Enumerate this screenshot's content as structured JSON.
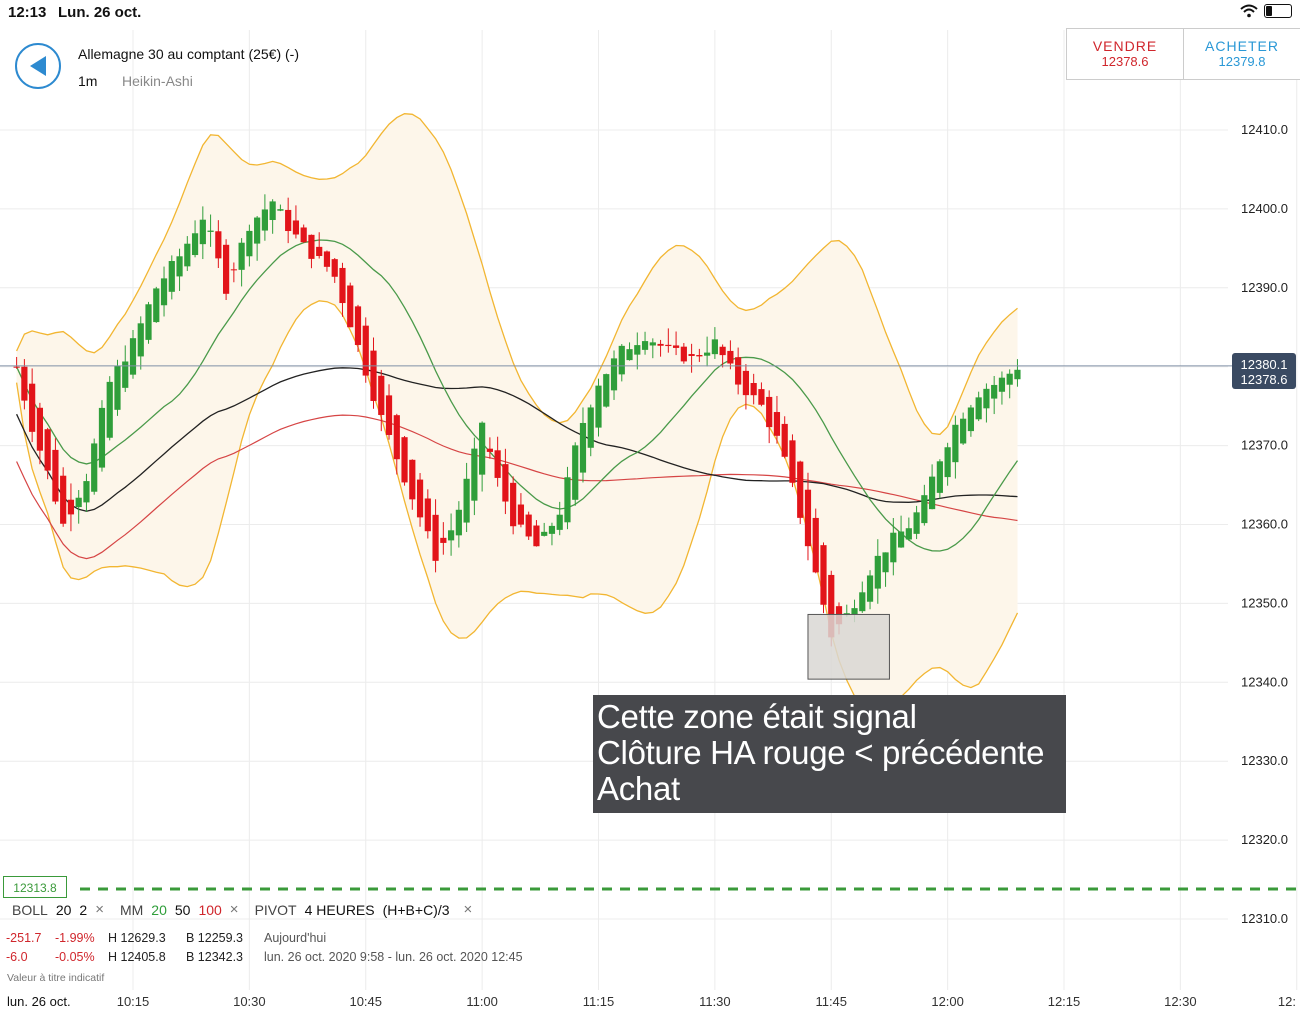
{
  "status_bar": {
    "time": "12:13",
    "date": "Lun. 26 oct."
  },
  "header": {
    "instrument": "Allemagne 30 au comptant (25€) (-)",
    "timeframe": "1m",
    "chart_type": "Heikin-Ashi",
    "sell": {
      "label": "VENDRE",
      "price": "12378.6"
    },
    "buy": {
      "label": "ACHETER",
      "price": "12379.8"
    }
  },
  "colors": {
    "bull": "#2f9e3a",
    "bear": "#e2141a",
    "band": "#f2b632",
    "band_fill": "#fdf6ea",
    "mm20": "#4a9a4a",
    "mm50": "#222222",
    "mm100": "#d64545",
    "accent": "#2d8ad0"
  },
  "current_price": "12380.1",
  "price_tag_hidden": "12378.6",
  "level_label": "12313.8",
  "annotation": [
    "Cette zone était signal",
    "Clôture HA rouge < précédente",
    "Achat"
  ],
  "indicators": {
    "boll": {
      "name": "BOLL",
      "p1": "20",
      "p2": "2"
    },
    "mm": {
      "name": "MM",
      "p1": "20",
      "p2": "50",
      "p3": "100"
    },
    "pivot": {
      "name": "PIVOT",
      "period": "4 HEURES",
      "formula": "(H+B+C)/3"
    },
    "close_icon": "×"
  },
  "stats": {
    "row1": {
      "change": "-251.7",
      "pct": "-1.99%",
      "high": "H 12629.3",
      "low": "B 12259.3",
      "label": "Aujourd'hui"
    },
    "row2": {
      "change": "-6.0",
      "pct": "-0.05%",
      "high": "H 12405.8",
      "low": "B 12342.3",
      "label": "lun. 26 oct. 2020 9:58 - lun. 26 oct. 2020 12:45"
    }
  },
  "disclaimer": "Valeur à titre indicatif",
  "bottom_date": "lun. 26 oct.",
  "chart_data": {
    "type": "heikin-ashi",
    "y_ticks": [
      "12410.0",
      "12400.0",
      "12390.0",
      "12380.0",
      "12370.0",
      "12360.0",
      "12350.0",
      "12340.0",
      "12330.0",
      "12320.0",
      "12310.0"
    ],
    "x_ticks": [
      "10:15",
      "10:30",
      "10:45",
      "11:00",
      "11:15",
      "11:30",
      "11:45",
      "12:00",
      "12:15",
      "12:30",
      "12:"
    ],
    "ylim": [
      12308,
      12412
    ],
    "grid": true,
    "level": 12313.8,
    "highlight_zone": {
      "t_start": 11.7,
      "t_end": 11.875,
      "low": 12340.4,
      "high": 12348.6
    }
  }
}
